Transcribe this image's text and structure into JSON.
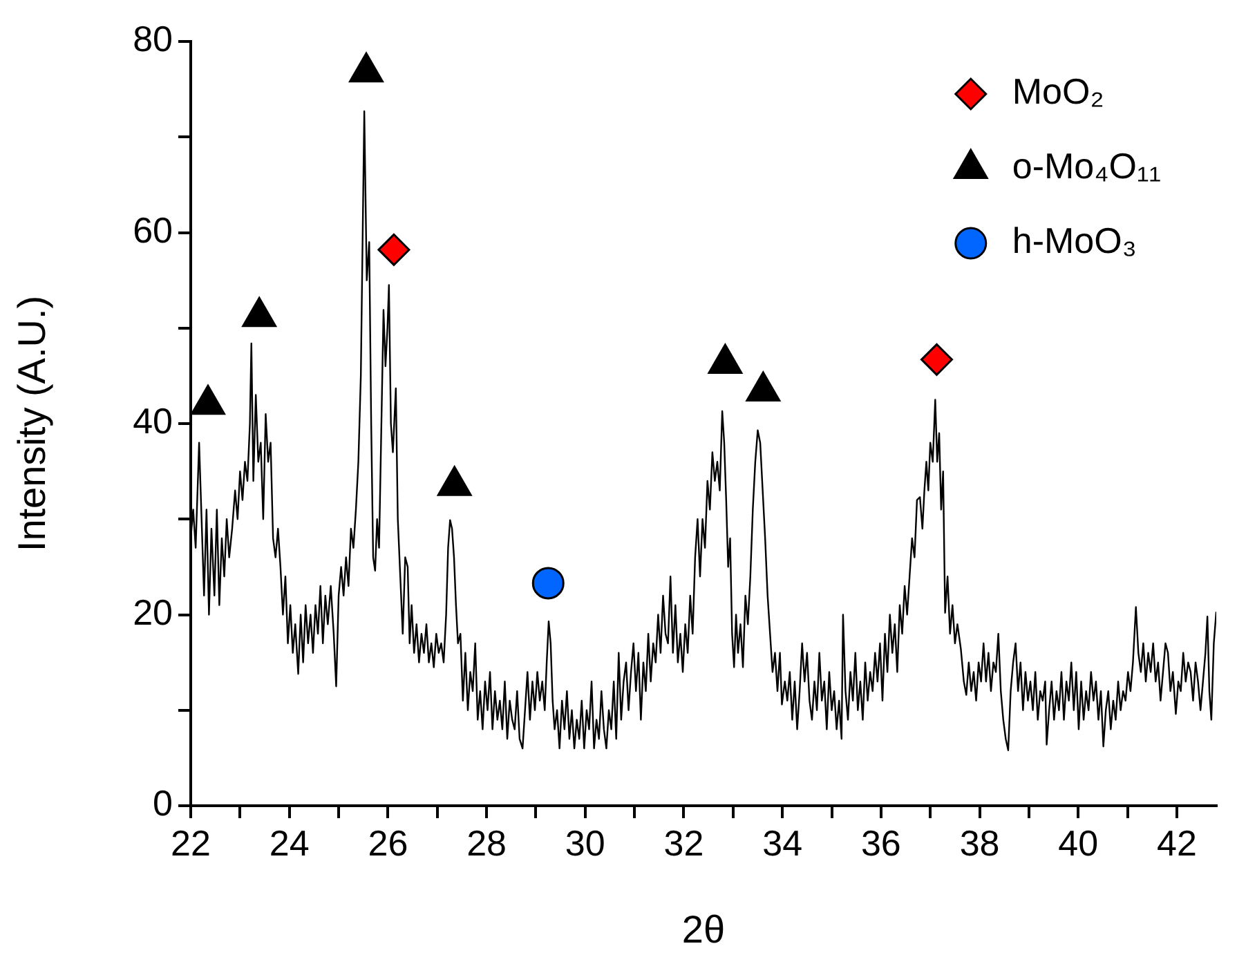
{
  "chart_data": {
    "type": "line",
    "xlabel": "2θ",
    "ylabel": "Intensity (A.U.)",
    "xlim": [
      22,
      42.8
    ],
    "ylim": [
      0,
      80
    ],
    "xticks": [
      22,
      {
        "value": 23,
        "label": null
      },
      24,
      {
        "value": 25,
        "label": null
      },
      26,
      {
        "value": 27,
        "label": null
      },
      28,
      {
        "value": 29,
        "label": null
      },
      30,
      {
        "value": 31,
        "label": null
      },
      32,
      {
        "value": 33,
        "label": null
      },
      34,
      {
        "value": 35,
        "label": null
      },
      36,
      {
        "value": 37,
        "label": null
      },
      38,
      {
        "value": 39,
        "label": null
      },
      40,
      {
        "value": 41,
        "label": null
      },
      42
    ],
    "yticks": [
      0,
      {
        "value": 10,
        "label": null
      },
      20,
      {
        "value": 30,
        "label": null
      },
      40,
      {
        "value": 50,
        "label": null
      },
      60,
      {
        "value": 70,
        "label": null
      },
      80
    ],
    "grid": false,
    "legend": "top right",
    "series": [
      {
        "type": "line",
        "color": "#000000",
        "marker": "none",
        "x": [
          22.0,
          22.05,
          22.1,
          22.17,
          22.22,
          22.27,
          22.32,
          22.37,
          22.42,
          22.48,
          22.53,
          22.58,
          22.63,
          22.68,
          22.73,
          22.78,
          22.84,
          22.9,
          22.95,
          23.0,
          23.05,
          23.1,
          23.15,
          23.2,
          23.23,
          23.27,
          23.32,
          23.37,
          23.42,
          23.47,
          23.52,
          23.57,
          23.62,
          23.67,
          23.72,
          23.77,
          23.82,
          23.87,
          23.92,
          23.97,
          24.02,
          24.07,
          24.12,
          24.18,
          24.23,
          24.28,
          24.33,
          24.38,
          24.43,
          24.48,
          24.53,
          24.58,
          24.63,
          24.68,
          24.73,
          24.78,
          24.84,
          24.9,
          24.95,
          25.0,
          25.05,
          25.1,
          25.15,
          25.2,
          25.25,
          25.3,
          25.35,
          25.4,
          25.45,
          25.52,
          25.57,
          25.62,
          25.66,
          25.7,
          25.74,
          25.78,
          25.82,
          25.86,
          25.91,
          25.95,
          25.99,
          26.02,
          26.06,
          26.1,
          26.16,
          26.2,
          26.25,
          26.3,
          26.35,
          26.4,
          26.44,
          26.48,
          26.53,
          26.58,
          26.63,
          26.68,
          26.73,
          26.78,
          26.83,
          26.88,
          26.93,
          26.98,
          27.03,
          27.08,
          27.13,
          27.18,
          27.22,
          27.26,
          27.3,
          27.34,
          27.38,
          27.42,
          27.47,
          27.52,
          27.57,
          27.62,
          27.67,
          27.72,
          27.77,
          27.82,
          27.87,
          27.92,
          27.97,
          28.02,
          28.07,
          28.12,
          28.17,
          28.22,
          28.27,
          28.32,
          28.37,
          28.42,
          28.47,
          28.52,
          28.57,
          28.62,
          28.67,
          28.73,
          28.78,
          28.83,
          28.88,
          28.93,
          28.98,
          29.03,
          29.08,
          29.13,
          29.18,
          29.22,
          29.26,
          29.3,
          29.34,
          29.38,
          29.43,
          29.48,
          29.53,
          29.58,
          29.63,
          29.68,
          29.73,
          29.78,
          29.83,
          29.88,
          29.93,
          29.98,
          30.03,
          30.08,
          30.13,
          30.18,
          30.23,
          30.28,
          30.33,
          30.38,
          30.43,
          30.48,
          30.53,
          30.58,
          30.63,
          30.68,
          30.73,
          30.78,
          30.83,
          30.88,
          30.93,
          30.98,
          31.03,
          31.08,
          31.13,
          31.18,
          31.23,
          31.28,
          31.33,
          31.38,
          31.43,
          31.48,
          31.53,
          31.58,
          31.63,
          31.68,
          31.73,
          31.78,
          31.83,
          31.88,
          31.93,
          31.98,
          32.03,
          32.08,
          32.13,
          32.18,
          32.23,
          32.28,
          32.33,
          32.38,
          32.43,
          32.48,
          32.53,
          32.58,
          32.63,
          32.68,
          32.73,
          32.78,
          32.82,
          32.86,
          32.9,
          32.94,
          32.98,
          33.02,
          33.06,
          33.1,
          33.15,
          33.2,
          33.25,
          33.3,
          33.35,
          33.4,
          33.45,
          33.5,
          33.55,
          33.6,
          33.65,
          33.7,
          33.75,
          33.8,
          33.85,
          33.9,
          33.95,
          33.99,
          34.05,
          34.1,
          34.15,
          34.2,
          34.25,
          34.3,
          34.35,
          34.4,
          34.45,
          34.5,
          34.55,
          34.6,
          34.65,
          34.7,
          34.75,
          34.8,
          34.85,
          34.9,
          34.95,
          35.0,
          35.05,
          35.1,
          35.15,
          35.2,
          35.23,
          35.28,
          35.33,
          35.38,
          35.43,
          35.48,
          35.53,
          35.58,
          35.63,
          35.68,
          35.73,
          35.78,
          35.83,
          35.88,
          35.93,
          35.98,
          36.03,
          36.08,
          36.13,
          36.18,
          36.23,
          36.28,
          36.33,
          36.38,
          36.43,
          36.48,
          36.53,
          36.58,
          36.63,
          36.68,
          36.73,
          36.79,
          36.84,
          36.88,
          36.92,
          36.96,
          37.0,
          37.05,
          37.1,
          37.14,
          37.18,
          37.22,
          37.26,
          37.3,
          37.35,
          37.4,
          37.45,
          37.5,
          37.55,
          37.62,
          37.68,
          37.73,
          37.78,
          37.83,
          37.88,
          37.93,
          37.98,
          38.03,
          38.08,
          38.13,
          38.18,
          38.23,
          38.28,
          38.33,
          38.38,
          38.43,
          38.48,
          38.53,
          38.58,
          38.63,
          38.68,
          38.73,
          38.78,
          38.83,
          38.88,
          38.93,
          38.98,
          39.03,
          39.08,
          39.13,
          39.18,
          39.23,
          39.28,
          39.33,
          39.36,
          39.41,
          39.46,
          39.51,
          39.56,
          39.61,
          39.66,
          39.71,
          39.76,
          39.81,
          39.86,
          39.91,
          39.96,
          40.01,
          40.06,
          40.11,
          40.16,
          40.21,
          40.26,
          40.31,
          40.36,
          40.41,
          40.46,
          40.51,
          40.56,
          40.61,
          40.66,
          40.71,
          40.76,
          40.81,
          40.86,
          40.91,
          40.96,
          41.01,
          41.06,
          41.11,
          41.17,
          41.22,
          41.27,
          41.32,
          41.37,
          41.42,
          41.47,
          41.52,
          41.57,
          41.62,
          41.67,
          41.72,
          41.77,
          41.82,
          41.87,
          41.92,
          41.98,
          42.03,
          42.08,
          42.13,
          42.18,
          42.23,
          42.28,
          42.33,
          42.38,
          42.43,
          42.48,
          42.53,
          42.58,
          42.62,
          42.66,
          42.7,
          42.75,
          42.8
        ],
        "values": [
          28,
          31,
          27,
          38,
          30,
          22,
          31,
          20,
          29,
          22,
          31,
          21,
          28,
          24,
          30,
          26,
          29,
          33,
          30,
          35,
          32,
          36,
          34,
          40,
          48.4,
          34,
          43,
          36,
          38,
          30,
          41,
          36,
          38,
          28,
          26,
          29,
          25,
          20,
          24,
          17,
          21,
          16,
          19,
          13.8,
          20,
          15,
          21,
          17,
          20,
          16,
          21,
          18,
          23,
          17,
          22,
          19,
          23,
          18,
          12.5,
          22,
          25,
          22,
          26,
          23,
          29,
          27,
          31,
          36,
          45,
          72.7,
          55,
          59,
          40,
          26,
          24.6,
          30,
          27,
          38,
          51.9,
          46,
          50,
          54.5,
          40,
          37,
          43.7,
          30,
          24,
          18,
          26,
          25,
          17,
          21,
          16,
          19,
          15,
          18,
          16,
          19,
          15,
          17,
          14.5,
          18,
          16,
          17,
          15,
          20,
          27,
          29.9,
          29,
          26,
          21,
          17,
          18,
          11,
          16,
          10,
          14,
          12,
          17,
          9,
          12,
          8,
          13,
          10,
          14,
          8,
          12,
          9,
          11,
          8,
          13,
          7,
          11,
          9,
          8,
          12,
          7,
          6,
          10,
          14,
          9,
          13,
          10,
          14,
          11,
          13,
          10,
          15,
          19.3,
          17,
          11,
          8,
          10,
          6,
          11,
          8,
          12,
          7,
          10,
          6,
          9,
          7,
          11,
          6,
          10,
          8,
          13,
          6,
          9,
          7,
          12,
          8,
          6,
          10,
          8,
          13,
          7,
          16,
          9,
          13,
          15,
          10,
          14,
          17,
          12,
          16,
          9,
          15,
          12,
          18,
          13,
          17,
          15,
          20,
          16,
          22,
          18,
          17,
          24,
          16,
          21,
          15,
          18,
          14,
          19,
          16,
          22,
          18,
          26,
          30,
          24,
          30,
          27,
          34,
          31,
          37,
          34,
          36,
          33,
          41.3,
          38,
          32,
          25,
          28,
          18,
          14.5,
          20,
          16,
          19,
          14.5,
          22,
          19,
          24,
          31,
          36,
          39.3,
          38,
          33,
          28,
          22,
          18,
          14,
          16,
          12,
          16,
          10.6,
          13,
          11,
          14,
          9,
          13,
          8,
          12,
          17,
          13,
          16,
          11,
          9,
          13,
          10,
          16,
          11,
          13,
          8,
          14,
          10,
          12,
          8,
          11,
          7,
          20,
          12,
          9,
          14,
          11,
          16,
          10,
          13,
          9,
          15,
          11,
          14,
          12,
          16,
          13,
          17,
          11,
          18,
          14,
          20,
          16,
          19,
          14,
          21,
          18,
          23,
          20,
          24,
          28,
          26,
          32,
          32.3,
          29,
          33,
          36,
          33,
          38,
          36,
          42.5,
          36,
          39,
          31,
          35,
          20.2,
          24,
          18,
          21,
          17,
          19,
          16.4,
          13,
          11.6,
          15,
          12,
          14,
          11,
          15,
          13,
          17,
          13,
          16,
          12,
          15,
          14,
          18,
          12,
          9,
          7,
          5.8,
          12,
          15,
          17,
          12,
          15,
          10,
          14,
          11,
          13,
          10,
          14,
          9,
          12,
          11,
          13,
          6.4,
          10,
          13,
          9,
          12,
          10,
          14,
          9,
          13,
          11,
          15,
          10,
          14,
          8,
          13,
          9,
          12,
          10,
          14,
          11,
          13,
          9,
          12,
          6.2,
          10,
          12,
          8,
          11,
          9,
          13,
          10,
          12,
          11,
          14,
          12,
          15,
          20.8,
          16,
          14,
          17,
          13,
          16,
          14,
          17,
          13,
          15,
          11,
          14,
          17,
          16,
          12,
          14,
          9.6,
          13,
          12,
          16,
          13,
          15,
          14,
          11,
          15,
          13,
          10,
          13,
          16,
          19.8,
          12,
          9,
          17,
          20.3
        ]
      },
      {
        "type": "scatter",
        "name": "MoO₂",
        "color": "#ff0000",
        "marker": "diamond",
        "x": [
          26.12,
          37.13
        ],
        "values": [
          58.2,
          46.7
        ]
      },
      {
        "type": "scatter",
        "name": "o-Mo₄O₁₁",
        "color": "#000000",
        "marker": "triangle",
        "x": [
          22.35,
          23.39,
          25.56,
          27.35,
          32.84,
          33.61
        ],
        "values": [
          42.0,
          51.2,
          76.8,
          33.5,
          46.3,
          43.4
        ]
      },
      {
        "type": "scatter",
        "name": "h-MoO₃",
        "color": "#0066ff",
        "marker": "circle",
        "x": [
          29.25
        ],
        "values": [
          23.3
        ]
      }
    ]
  }
}
